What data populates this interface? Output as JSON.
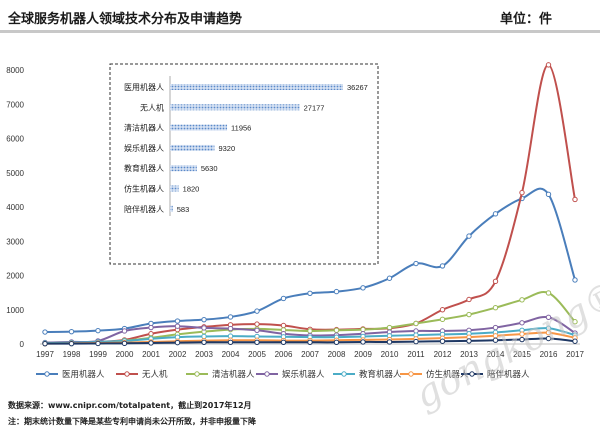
{
  "header": {
    "title": "全球服务机器人领域技术分布及申请趋势",
    "unit": "单位：件"
  },
  "footer": {
    "source": "数据来源：www.cnipr.com/totalpatent，截止到2017年12月",
    "note": "注：期末统计数量下降是某些专利申请尚未公开所致，并非申报量下降"
  },
  "watermark": "gongkong®",
  "chart_data": [
    {
      "type": "line",
      "x": [
        1997,
        1998,
        1999,
        2000,
        2001,
        2002,
        2003,
        2004,
        2005,
        2006,
        2007,
        2008,
        2009,
        2010,
        2011,
        2012,
        2013,
        2014,
        2015,
        2016,
        2017
      ],
      "ylim": [
        0,
        8000
      ],
      "yticks": [
        0,
        1000,
        2000,
        3000,
        4000,
        5000,
        6000,
        7000,
        8000
      ],
      "grid": false,
      "legend": "bottom",
      "series": [
        {
          "name": "医用机器人",
          "color": "#4a7ebb",
          "values": [
            350,
            360,
            390,
            450,
            600,
            670,
            710,
            790,
            960,
            1330,
            1480,
            1530,
            1640,
            1920,
            2350,
            2280,
            3150,
            3800,
            4250,
            4370,
            1870
          ]
        },
        {
          "name": "无人机",
          "color": "#c0504d",
          "values": [
            40,
            50,
            60,
            120,
            300,
            420,
            500,
            560,
            580,
            540,
            430,
            420,
            440,
            460,
            600,
            1000,
            1300,
            1830,
            4420,
            8150,
            4220
          ]
        },
        {
          "name": "清洁机器人",
          "color": "#9bbb59",
          "values": [
            20,
            30,
            50,
            100,
            180,
            280,
            360,
            420,
            440,
            410,
            380,
            400,
            420,
            480,
            600,
            720,
            860,
            1060,
            1290,
            1490,
            650
          ]
        },
        {
          "name": "娱乐机器人",
          "color": "#8064a2",
          "values": [
            40,
            60,
            90,
            380,
            480,
            520,
            470,
            450,
            400,
            300,
            250,
            260,
            300,
            350,
            380,
            380,
            400,
            480,
            620,
            780,
            320
          ]
        },
        {
          "name": "教育机器人",
          "color": "#4bacc6",
          "values": [
            30,
            40,
            60,
            90,
            150,
            200,
            220,
            230,
            220,
            210,
            200,
            200,
            220,
            240,
            260,
            280,
            300,
            340,
            400,
            460,
            260
          ]
        },
        {
          "name": "仿生机器人",
          "color": "#f79646",
          "values": [
            10,
            20,
            30,
            40,
            60,
            80,
            100,
            110,
            110,
            100,
            100,
            110,
            120,
            130,
            150,
            170,
            200,
            240,
            290,
            330,
            180
          ]
        },
        {
          "name": "陪伴机器人",
          "color": "#1f3864",
          "values": [
            10,
            10,
            15,
            20,
            30,
            40,
            50,
            50,
            50,
            50,
            50,
            50,
            60,
            60,
            70,
            80,
            90,
            110,
            130,
            160,
            80
          ]
        }
      ]
    },
    {
      "type": "bar",
      "orientation": "horizontal",
      "categories": [
        "医用机器人",
        "无人机",
        "清洁机器人",
        "娱乐机器人",
        "教育机器人",
        "仿生机器人",
        "陪伴机器人"
      ],
      "values": [
        36267,
        27177,
        11956,
        9320,
        5630,
        1820,
        583
      ],
      "color": "#5b8ac9",
      "bar_pattern": "dotted"
    }
  ]
}
